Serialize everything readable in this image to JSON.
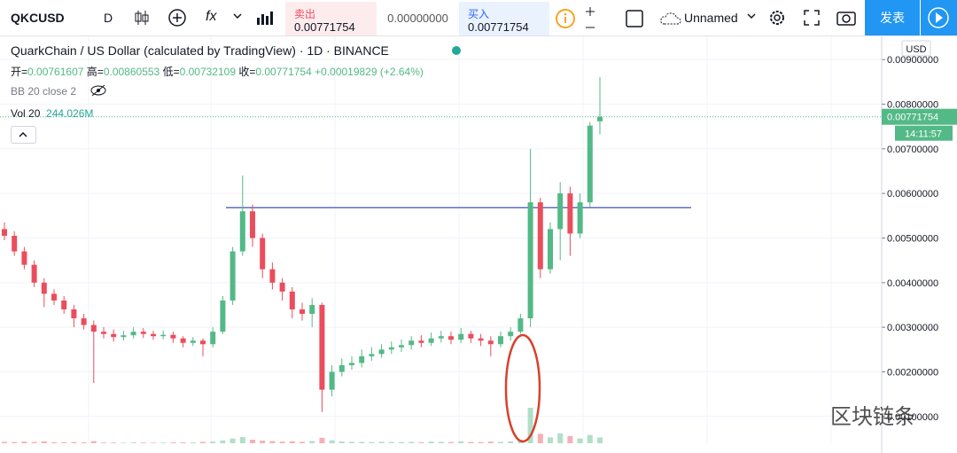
{
  "toolbar": {
    "symbol": "QKCUSD",
    "interval": "D",
    "indicators_button": "fx",
    "sell_label": "卖出",
    "sell_price": "0.00771754",
    "spread": "0.00000000",
    "buy_label": "买入",
    "buy_price": "0.00771754",
    "layout_name": "Unnamed",
    "publish": "发表"
  },
  "legend": {
    "title": "QuarkChain / US Dollar (calculated by TradingView) · 1D · BINANCE",
    "open_label": "开",
    "high_label": "高",
    "low_label": "低",
    "close_label": "收",
    "change": "+0.00019829 (+2.64%)",
    "bb": "BB 20 close 2",
    "vol_label": "Vol 20",
    "vol_value": "244.026M"
  },
  "watermark": "区块链条",
  "chart_data": {
    "type": "candlestick",
    "currency": "USD",
    "countdown": "14:11:57",
    "up_color": "#53b987",
    "down_color": "#eb4d5c",
    "grid": true,
    "ylim": [
      0.0004,
      0.00954
    ],
    "yticks": [
      {
        "value": 0.001,
        "label": "0.00100000"
      },
      {
        "value": 0.002,
        "label": "0.00200000"
      },
      {
        "value": 0.003,
        "label": "0.00300000"
      },
      {
        "value": 0.004,
        "label": "0.00400000"
      },
      {
        "value": 0.005,
        "label": "0.00500000"
      },
      {
        "value": 0.006,
        "label": "0.00600000"
      },
      {
        "value": 0.007,
        "label": "0.00700000"
      },
      {
        "value": 0.008,
        "label": "0.00800000"
      },
      {
        "value": 0.009,
        "label": "0.00900000"
      }
    ],
    "horizontal_line": {
      "price": 0.00568,
      "color": "#3f51b5"
    },
    "open": [
      0.0052,
      0.00505,
      0.0047,
      0.0044,
      0.004,
      0.00375,
      0.0036,
      0.0034,
      0.0032,
      0.00305,
      0.0029,
      0.00285,
      0.00278,
      0.00282,
      0.0029,
      0.00285,
      0.0028,
      0.00283,
      0.00275,
      0.00265,
      0.0027,
      0.00262,
      0.0029,
      0.0036,
      0.0047,
      0.0056,
      0.005,
      0.0043,
      0.004,
      0.0038,
      0.0034,
      0.0033,
      0.0035,
      0.0016,
      0.002,
      0.00215,
      0.0022,
      0.00235,
      0.0024,
      0.0025,
      0.00255,
      0.0026,
      0.0027,
      0.00265,
      0.00275,
      0.0028,
      0.00272,
      0.00285,
      0.00275,
      0.0027,
      0.00262,
      0.0028,
      0.0029,
      0.0032,
      0.0058,
      0.0043,
      0.0052,
      0.006,
      0.0051,
      0.0058,
      0.00761607
    ],
    "high": [
      0.00535,
      0.00515,
      0.0048,
      0.0045,
      0.0041,
      0.00385,
      0.0037,
      0.0035,
      0.0033,
      0.00315,
      0.003,
      0.00295,
      0.00292,
      0.003,
      0.00298,
      0.00292,
      0.00293,
      0.0029,
      0.0028,
      0.00278,
      0.00275,
      0.003,
      0.0037,
      0.0048,
      0.0064,
      0.00575,
      0.0051,
      0.00445,
      0.0041,
      0.0039,
      0.00355,
      0.00365,
      0.00355,
      0.00215,
      0.0023,
      0.00235,
      0.0025,
      0.00255,
      0.00262,
      0.00268,
      0.00272,
      0.0028,
      0.00282,
      0.00288,
      0.00292,
      0.0029,
      0.00298,
      0.00292,
      0.00285,
      0.0028,
      0.0029,
      0.003,
      0.0033,
      0.007,
      0.0059,
      0.00535,
      0.00625,
      0.00615,
      0.006,
      0.0076,
      0.00860553
    ],
    "low": [
      0.00495,
      0.0046,
      0.0043,
      0.0039,
      0.00345,
      0.0035,
      0.0033,
      0.003,
      0.00295,
      0.00175,
      0.00275,
      0.00268,
      0.0027,
      0.00275,
      0.00276,
      0.00272,
      0.00273,
      0.00265,
      0.00255,
      0.00258,
      0.00235,
      0.00255,
      0.00285,
      0.0035,
      0.0046,
      0.0048,
      0.0041,
      0.00385,
      0.0036,
      0.0032,
      0.00315,
      0.003,
      0.0011,
      0.00145,
      0.0019,
      0.00205,
      0.0021,
      0.00225,
      0.00232,
      0.0024,
      0.00245,
      0.0025,
      0.00255,
      0.00258,
      0.00266,
      0.00262,
      0.00265,
      0.00265,
      0.00258,
      0.00235,
      0.00255,
      0.0027,
      0.00285,
      0.003,
      0.0041,
      0.0042,
      0.0045,
      0.0046,
      0.005,
      0.0057,
      0.00732109
    ],
    "close": [
      0.00505,
      0.0047,
      0.0044,
      0.004,
      0.00375,
      0.0036,
      0.0034,
      0.0032,
      0.00305,
      0.0029,
      0.00285,
      0.00278,
      0.00282,
      0.0029,
      0.00285,
      0.0028,
      0.00283,
      0.00275,
      0.00265,
      0.0027,
      0.00262,
      0.0029,
      0.0036,
      0.0047,
      0.0056,
      0.005,
      0.0043,
      0.004,
      0.0038,
      0.0034,
      0.0033,
      0.0035,
      0.0016,
      0.002,
      0.00215,
      0.0022,
      0.00235,
      0.0024,
      0.0025,
      0.00255,
      0.0026,
      0.0027,
      0.00265,
      0.00275,
      0.0028,
      0.00272,
      0.00285,
      0.00275,
      0.0027,
      0.00262,
      0.0028,
      0.0029,
      0.0032,
      0.0058,
      0.0043,
      0.0052,
      0.006,
      0.0051,
      0.0058,
      0.00751925,
      0.00771754
    ],
    "volume": [
      60,
      50,
      70,
      55,
      80,
      45,
      40,
      50,
      35,
      90,
      30,
      30,
      25,
      35,
      30,
      25,
      30,
      35,
      40,
      35,
      60,
      70,
      120,
      200,
      260,
      150,
      110,
      90,
      70,
      80,
      60,
      90,
      230,
      120,
      80,
      60,
      55,
      50,
      60,
      55,
      50,
      60,
      45,
      70,
      60,
      50,
      80,
      55,
      50,
      70,
      60,
      80,
      150,
      1500,
      400,
      250,
      420,
      300,
      200,
      350,
      244.026
    ]
  }
}
